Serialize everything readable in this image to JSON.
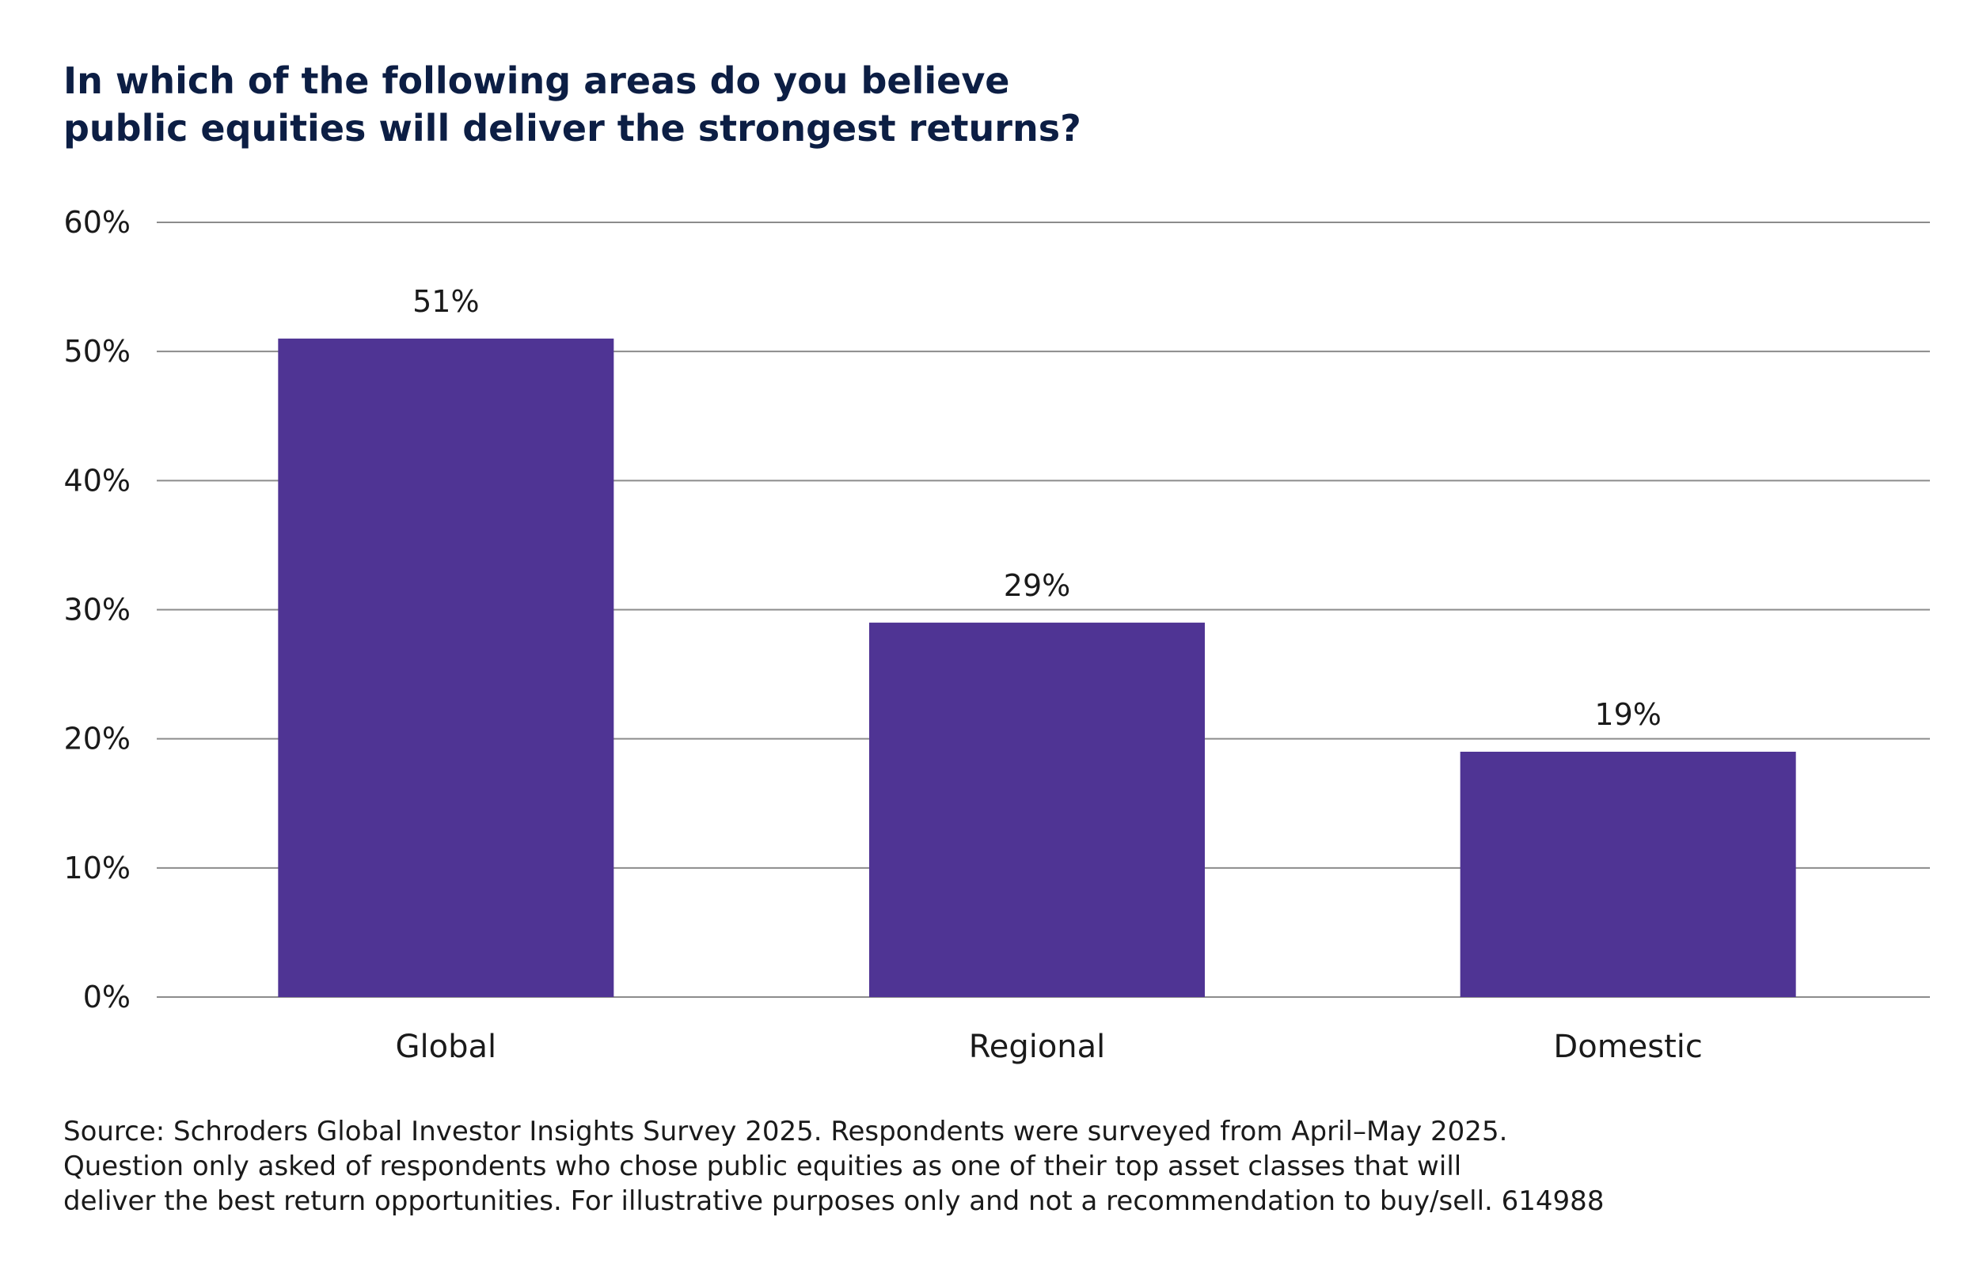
{
  "title_lines": [
    "In which of the following areas do you believe",
    "public equities will deliver the strongest returns?"
  ],
  "colors": {
    "bar": "#4f3494",
    "title": "#0c1e44",
    "grid": "#8c8c8c",
    "text": "#1a1a1a"
  },
  "chart_data": {
    "type": "bar",
    "title": "In which of the following areas do you believe public equities will deliver the strongest returns?",
    "categories": [
      "Global",
      "Regional",
      "Domestic"
    ],
    "values": [
      51,
      29,
      19
    ],
    "value_labels": [
      "51%",
      "29%",
      "19%"
    ],
    "xlabel": "",
    "ylabel": "",
    "ylim": [
      0,
      60
    ],
    "yticks": [
      0,
      10,
      20,
      30,
      40,
      50,
      60
    ],
    "ytick_labels": [
      "0%",
      "10%",
      "20%",
      "30%",
      "40%",
      "50%",
      "60%"
    ],
    "grid": true,
    "legend": false
  },
  "source_lines": [
    "Source: Schroders Global Investor Insights Survey 2025. Respondents were surveyed from April–May 2025.",
    "Question only asked of respondents who chose public equities as one of their top asset classes that will",
    "deliver the best return opportunities. For illustrative purposes only and not a recommendation to buy/sell. 614988"
  ]
}
